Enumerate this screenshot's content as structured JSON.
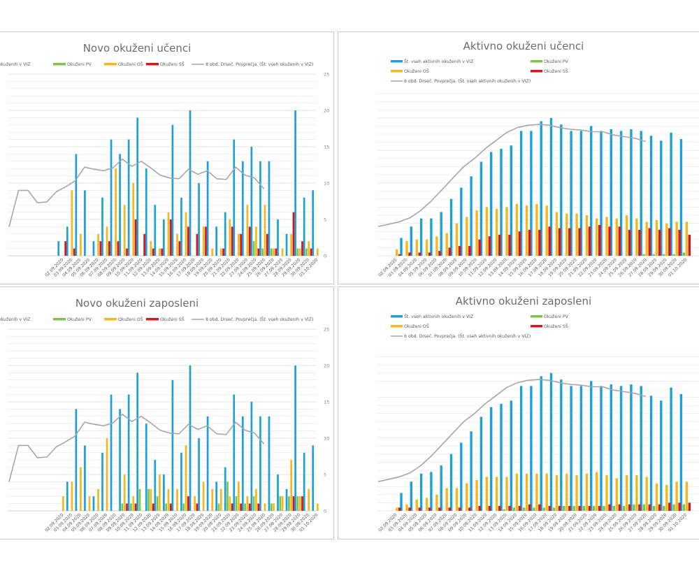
{
  "page": {
    "background": "#ffffff"
  },
  "colors": {
    "total": "#1ba1d8",
    "pv": "#7cc34a",
    "os": "#f2b81d",
    "ss": "#d9141b",
    "avg": "#a6a6a6",
    "grid": "#e3e3e3"
  },
  "chart_data": [
    {
      "id": "novo-ucenci",
      "type": "bar",
      "title": "Novo okuženi učenci",
      "legend": [
        "Št. vseh okuženih v VIZ",
        "Okuženi PV",
        "Okuženi OŠ",
        "Okuženi SŠ",
        "8 obd. Drseč. Povprečja. (Št. vseh okuženih v VIZ)"
      ],
      "legend_position": "top",
      "ylim": [
        0,
        25
      ],
      "yticks": [
        0,
        5,
        10,
        15,
        20,
        25
      ],
      "grid": true,
      "categories": [
        "02.09.2020",
        "03.09.2020",
        "04.09.2020",
        "05.09.2020",
        "06.09.2020",
        "07.09.2020",
        "08.09.2020",
        "09.09.2020",
        "10.09.2020",
        "11.09.2020",
        "12.09.2020",
        "13.09.2020",
        "14.09.2020",
        "15.09.2020",
        "16.09.2020",
        "17.09.2020",
        "18.09.2020",
        "19.09.2020",
        "20.09.2020",
        "21.09.2020",
        "22.09.2020",
        "23.09.2020",
        "24.09.2020",
        "25.09.2020",
        "26.09.2020",
        "27.09.2020",
        "28.09.2020",
        "29.09.2020",
        "30.09.2020",
        "01.10.2020"
      ],
      "series": [
        {
          "name": "Št. vseh okuženih v VIZ",
          "values": [
            2,
            4,
            14,
            9,
            2,
            8,
            16,
            14,
            16,
            19,
            12,
            7,
            5,
            18,
            8,
            20,
            10,
            13,
            4,
            6,
            16,
            13,
            15,
            13,
            13,
            5,
            3,
            20,
            8,
            9
          ]
        },
        {
          "name": "Okuženi PV",
          "values": [
            0,
            0,
            0,
            0,
            0,
            0,
            0,
            0,
            0,
            0,
            0,
            0,
            0,
            0,
            0,
            0,
            0,
            0,
            0,
            0,
            0,
            0,
            2,
            1,
            1,
            0,
            0,
            1,
            1,
            0
          ]
        },
        {
          "name": "Okuženi OŠ",
          "values": [
            0,
            9,
            3,
            0,
            3,
            4,
            12,
            7,
            10,
            0,
            2,
            1,
            6,
            3,
            6,
            0,
            4,
            1,
            1,
            5,
            3,
            7,
            4,
            7,
            1,
            1,
            3,
            1,
            2,
            1
          ]
        },
        {
          "name": "Okuženi SŠ",
          "values": [
            2,
            1,
            0,
            0,
            2,
            2,
            2,
            1,
            5,
            3,
            1,
            1,
            5,
            2,
            4,
            3,
            4,
            0,
            1,
            4,
            3,
            4,
            1,
            3,
            1,
            0,
            6,
            2,
            1,
            0
          ]
        }
      ],
      "moving_average": {
        "name": "8 obd. Drseč. Povprečja. (Št. vseh okuženih v VIZ)",
        "values": [
          4,
          9,
          9,
          7.3,
          7.4,
          8.8,
          9.5,
          10.3,
          12.2,
          11.9,
          11.7,
          12.1,
          13.3,
          12.3,
          13,
          12.1,
          11.1,
          10.7,
          10.6,
          11.9,
          11.2,
          11.7,
          10.6,
          10.5,
          12.2,
          11.1,
          10.7,
          9.2
        ]
      }
    },
    {
      "id": "aktivno-ucenci",
      "type": "bar",
      "title": "Aktivno okuženi učenci",
      "legend": [
        "Št. vseh aktivnih okuženih v VIZ",
        "Okuženi PV",
        "Okuženi OŠ",
        "Okuženi SŠ",
        "6 obd. Drseč. Povprečja. (Št. vseh aktivnih okuženih v VIZ)"
      ],
      "legend_position": "top",
      "ylim": [
        0,
        100
      ],
      "yticks": [],
      "grid": true,
      "categories": [
        "02.09.2020",
        "03.09.2020",
        "04.09.2020",
        "05.09.2020",
        "06.09.2020",
        "07.09.2020",
        "08.09.2020",
        "09.09.2020",
        "10.09.2020",
        "11.09.2020",
        "12.09.2020",
        "13.09.2020",
        "14.09.2020",
        "15.09.2020",
        "16.09.2020",
        "17.09.2020",
        "18.09.2020",
        "19.09.2020",
        "20.09.2020",
        "21.09.2020",
        "22.09.2020",
        "23.09.2020",
        "24.09.2020",
        "25.09.2020",
        "26.09.2020",
        "27.09.2020",
        "28.09.2020",
        "29.09.2020",
        "30.09.2020",
        "01.10.2020"
      ],
      "series": [
        {
          "name": "Št. vseh aktivnih okuženih v VIZ",
          "values": [
            0,
            11,
            18,
            23,
            23,
            27,
            35,
            42,
            49,
            58,
            64,
            66,
            68,
            77,
            77,
            83,
            85,
            81,
            77,
            77,
            80,
            77,
            78,
            77,
            78,
            77,
            74,
            71,
            76,
            72
          ]
        },
        {
          "name": "Okuženi PV",
          "values": [
            0,
            0,
            0,
            0,
            0,
            0,
            0,
            0,
            0,
            0,
            0,
            0,
            0,
            0,
            0,
            0,
            0,
            0,
            0,
            0,
            0,
            0,
            0,
            0,
            0,
            1,
            1,
            1,
            1,
            2
          ]
        },
        {
          "name": "Okuženi OŠ",
          "values": [
            4,
            9,
            10,
            10,
            12,
            14,
            20,
            24,
            28,
            30,
            29,
            30,
            32,
            31,
            32,
            31,
            27,
            26,
            26,
            25,
            23,
            24,
            23,
            25,
            23,
            21,
            22,
            20,
            21,
            21
          ]
        },
        {
          "name": "Okuženi SŠ",
          "values": [
            1,
            2,
            2,
            2,
            3,
            5,
            6,
            6,
            10,
            12,
            13,
            13,
            15,
            16,
            16,
            18,
            17,
            17,
            17,
            18,
            19,
            18,
            18,
            16,
            16,
            17,
            16,
            17,
            16,
            13
          ]
        }
      ],
      "moving_average": {
        "name": "6 obd. Drseč. Povprečja. (Št. vseh aktivnih okuženih v VIZ)",
        "values": [
          18,
          19.5,
          21,
          23.5,
          28,
          34,
          41,
          48,
          55,
          60,
          66,
          71,
          76,
          79,
          80.5,
          81,
          80.5,
          79,
          78,
          77.5,
          76.5,
          76.5,
          74.5,
          73.5,
          72.5,
          70.5
        ]
      }
    },
    {
      "id": "novo-zaposleni",
      "type": "bar",
      "title": "Novo okuženi zaposleni",
      "legend": [
        "Št. vseh okuženih v VIZ",
        "Okuženi PV",
        "Okuženi OŠ",
        "Okuženi SŠ",
        "8 obd. Drseč. Povprečja. (Št. vseh okuženih v VIZ)"
      ],
      "legend_position": "top",
      "ylim": [
        0,
        25
      ],
      "yticks": [
        0,
        5,
        10,
        15,
        20,
        25
      ],
      "grid": true,
      "categories": [
        "02.09.2020",
        "03.09.2020",
        "04.09.2020",
        "05.09.2020",
        "06.09.2020",
        "07.09.2020",
        "08.09.2020",
        "09.09.2020",
        "10.09.2020",
        "11.09.2020",
        "12.09.2020",
        "13.09.2020",
        "14.09.2020",
        "15.09.2020",
        "16.09.2020",
        "17.09.2020",
        "18.09.2020",
        "19.09.2020",
        "20.09.2020",
        "21.09.2020",
        "22.09.2020",
        "23.09.2020",
        "24.09.2020",
        "25.09.2020",
        "26.09.2020",
        "27.09.2020",
        "28.09.2020",
        "29.09.2020",
        "30.09.2020",
        "01.10.2020"
      ],
      "series": [
        {
          "name": "Št. vseh okuženih v VIZ",
          "values": [
            0,
            4,
            14,
            9,
            2,
            8,
            16,
            14,
            16,
            19,
            12,
            7,
            5,
            18,
            8,
            20,
            10,
            13,
            4,
            6,
            16,
            13,
            15,
            13,
            13,
            5,
            3,
            20,
            8,
            9
          ]
        },
        {
          "name": "Okuženi PV",
          "values": [
            0,
            0,
            0,
            0,
            0,
            0,
            0,
            1,
            1,
            3,
            3,
            2,
            1,
            0,
            1,
            0,
            0,
            0,
            1,
            4,
            2,
            1,
            2,
            0,
            1,
            2,
            2,
            2,
            0,
            0
          ]
        },
        {
          "name": "Okuženi OŠ",
          "values": [
            2,
            4,
            6,
            2,
            3,
            10,
            0,
            5,
            2,
            0,
            3,
            5,
            3,
            3,
            9,
            2,
            4,
            3,
            3,
            2,
            4,
            2,
            3,
            1,
            1,
            2,
            7,
            2,
            3,
            1
          ]
        },
        {
          "name": "Okuženi SŠ",
          "values": [
            0,
            0,
            0,
            0,
            0,
            0,
            0,
            1,
            1,
            0,
            1,
            0,
            1,
            0,
            2,
            1,
            0,
            0,
            0,
            1,
            1,
            1,
            1,
            0,
            0,
            0,
            2,
            2,
            0,
            0
          ]
        }
      ],
      "moving_average": {
        "name": "8 obd. Drseč. Povprečja. (Št. vseh okuženih v VIZ)",
        "values": [
          4,
          9,
          9,
          7.3,
          7.4,
          8.8,
          9.5,
          10.3,
          12.2,
          11.9,
          11.7,
          12.1,
          13.3,
          12.3,
          13,
          12.1,
          11.1,
          10.7,
          10.6,
          11.9,
          11.2,
          11.7,
          10.6,
          10.5,
          12.2,
          11.1,
          10.7,
          9.2
        ]
      }
    },
    {
      "id": "aktivno-zaposleni",
      "type": "bar",
      "title": "Aktivno okuženi zaposleni",
      "legend": [
        "Št. vseh aktivnih okuženih v VIZ",
        "Okuženi PV",
        "Okuženi OŠ",
        "Okuženi SŠ",
        "6 obd. Drseč. Povprečja. (Št. vseh aktivnih okuženih v VIZ)"
      ],
      "legend_position": "top",
      "ylim": [
        0,
        100
      ],
      "yticks": [],
      "grid": true,
      "categories": [
        "02.09.2020",
        "03.09.2020",
        "04.09.2020",
        "05.09.2020",
        "06.09.2020",
        "07.09.2020",
        "08.09.2020",
        "09.09.2020",
        "10.09.2020",
        "11.09.2020",
        "12.09.2020",
        "13.09.2020",
        "14.09.2020",
        "15.09.2020",
        "16.09.2020",
        "17.09.2020",
        "18.09.2020",
        "19.09.2020",
        "20.09.2020",
        "21.09.2020",
        "22.09.2020",
        "23.09.2020",
        "24.09.2020",
        "25.09.2020",
        "26.09.2020",
        "27.09.2020",
        "28.09.2020",
        "29.09.2020",
        "30.09.2020",
        "01.10.2020"
      ],
      "series": [
        {
          "name": "Št. vseh aktivnih okuženih v VIZ",
          "values": [
            0,
            11,
            18,
            23,
            24,
            28,
            35,
            42,
            49,
            58,
            64,
            66,
            68,
            77,
            77,
            83,
            85,
            81,
            77,
            77,
            80,
            77,
            78,
            77,
            78,
            77,
            71,
            68,
            76,
            72
          ]
        },
        {
          "name": "Okuženi PV",
          "values": [
            0,
            0,
            0,
            0,
            0,
            0,
            0,
            0,
            0,
            0,
            0,
            1,
            2,
            2,
            2,
            2,
            2,
            3,
            3,
            3,
            3,
            3,
            3,
            3,
            4,
            4,
            3,
            3,
            4,
            4
          ]
        },
        {
          "name": "Okuženi OŠ",
          "values": [
            2,
            4,
            7,
            8,
            10,
            14,
            14,
            17,
            19,
            21,
            21,
            21,
            23,
            23,
            23,
            23,
            22,
            23,
            22,
            23,
            24,
            22,
            20,
            22,
            22,
            21,
            17,
            16,
            18,
            18
          ]
        },
        {
          "name": "Okuženi SŠ",
          "values": [
            2,
            2,
            2,
            2,
            2,
            2,
            2,
            2,
            3,
            3,
            3,
            3,
            3,
            4,
            4,
            3,
            3,
            3,
            3,
            3,
            3,
            4,
            4,
            4,
            4,
            4,
            4,
            5,
            5,
            5
          ]
        }
      ],
      "moving_average": {
        "name": "6 obd. Drseč. Povprečja. (Št. vseh aktivnih okuženih v VIZ)",
        "values": [
          18,
          19.5,
          21,
          23.5,
          28,
          34,
          41,
          48,
          55,
          60,
          66,
          71,
          76,
          79,
          80.5,
          81,
          80.5,
          79,
          78,
          77.5,
          76.5,
          76.5,
          74.5,
          73.5,
          72.5,
          70.5
        ]
      }
    }
  ]
}
